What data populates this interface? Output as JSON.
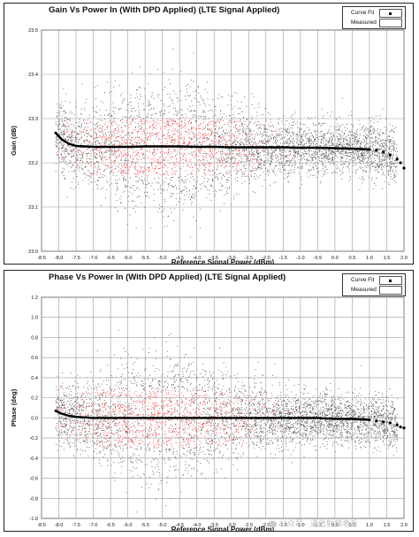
{
  "watermark": {
    "text": "公众号 · 通信射频老兵",
    "icon": "wechat-icon"
  },
  "colors": {
    "scatter_dense": "#ff3b3b",
    "scatter_sparse": "#555555",
    "curve": "#000000",
    "grid": "#9a9a9a"
  },
  "chart_data": [
    {
      "type": "scatter",
      "title": "Gain Vs Power In (With DPD Applied) (LTE Signal Applied)",
      "xlabel": "Reference Signal Power (dBm)",
      "ylabel": "Gain (dB)",
      "xlim": [
        -8.5,
        2.0
      ],
      "ylim": [
        23.0,
        23.5
      ],
      "xticks": [
        "-8.5",
        "-8.0",
        "-7.5",
        "-7.0",
        "-6.5",
        "-6.0",
        "-5.5",
        "-5.0",
        "-4.5",
        "-4.0",
        "-3.5",
        "-3.0",
        "-2.5",
        "-2.0",
        "-1.5",
        "-1.0",
        "-0.5",
        "0.0",
        "0.5",
        "1.0",
        "1.5",
        "2.0"
      ],
      "yticks": [
        "23.0",
        "23.1",
        "23.2",
        "23.3",
        "23.4",
        "23.5"
      ],
      "grid": true,
      "legend": {
        "position": "top-right",
        "entries": [
          "Curve Fit",
          "Measured"
        ]
      },
      "series": [
        {
          "name": "Curve Fit",
          "style": "points",
          "x": [
            -8.1,
            -7.9,
            -7.7,
            -7.5,
            -7.0,
            -6.5,
            -6.0,
            -5.5,
            -5.0,
            -4.5,
            -4.0,
            -3.5,
            -3.0,
            -2.5,
            -2.0,
            -1.5,
            -1.0,
            -0.5,
            0.0,
            0.5,
            1.0,
            1.2,
            1.4,
            1.6,
            1.8,
            1.9,
            2.0
          ],
          "y": [
            23.268,
            23.252,
            23.243,
            23.238,
            23.236,
            23.236,
            23.236,
            23.237,
            23.237,
            23.237,
            23.236,
            23.236,
            23.235,
            23.235,
            23.235,
            23.235,
            23.234,
            23.234,
            23.233,
            23.232,
            23.23,
            23.228,
            23.224,
            23.218,
            23.208,
            23.2,
            23.188
          ]
        },
        {
          "name": "Measured",
          "style": "scatter-cloud",
          "center_x": -5.0,
          "center_y": 23.24,
          "x_range": [
            -8.1,
            1.8
          ],
          "spread_y": 0.09
        }
      ]
    },
    {
      "type": "scatter",
      "title": "Phase Vs Power In (With DPD Applied) (LTE Signal Applied)",
      "xlabel": "Reference Signal Power (dBm)",
      "ylabel": "Phase (deg)",
      "xlim": [
        -8.5,
        2.0
      ],
      "ylim": [
        -1.0,
        1.2
      ],
      "xticks": [
        "-8.5",
        "-8.0",
        "-7.5",
        "-7.0",
        "-6.5",
        "-6.0",
        "-5.5",
        "-5.0",
        "-4.5",
        "-4.0",
        "-3.5",
        "-3.0",
        "-2.5",
        "-2.0",
        "-1.5",
        "-1.0",
        "-0.5",
        "0.0",
        "0.5",
        "1.0",
        "1.5",
        "2.0"
      ],
      "yticks": [
        "-1.0",
        "-0.8",
        "-0.6",
        "-0.4",
        "-0.2",
        "0.0",
        "0.2",
        "0.4",
        "0.6",
        "0.8",
        "1.0",
        "1.2"
      ],
      "grid": true,
      "legend": {
        "position": "top-right",
        "entries": [
          "Curve Fit",
          "Measured"
        ]
      },
      "series": [
        {
          "name": "Curve Fit",
          "style": "points",
          "x": [
            -8.1,
            -7.9,
            -7.7,
            -7.5,
            -7.0,
            -6.5,
            -6.0,
            -5.5,
            -5.0,
            -4.5,
            -4.0,
            -3.5,
            -3.0,
            -2.5,
            -2.0,
            -1.5,
            -1.0,
            -0.5,
            0.0,
            0.5,
            1.0,
            1.2,
            1.4,
            1.6,
            1.8,
            1.9,
            2.0
          ],
          "y": [
            0.07,
            0.04,
            0.02,
            0.01,
            0.0,
            0.0,
            0.0,
            0.0,
            0.0,
            0.0,
            0.0,
            0.0,
            0.0,
            0.0,
            0.0,
            0.0,
            0.0,
            0.0,
            -0.01,
            -0.01,
            -0.02,
            -0.03,
            -0.04,
            -0.05,
            -0.07,
            -0.09,
            -0.1
          ]
        },
        {
          "name": "Measured",
          "style": "scatter-cloud",
          "center_x": -5.0,
          "center_y": -0.05,
          "x_range": [
            -8.1,
            1.8
          ],
          "spread_y": 0.38
        }
      ]
    }
  ]
}
